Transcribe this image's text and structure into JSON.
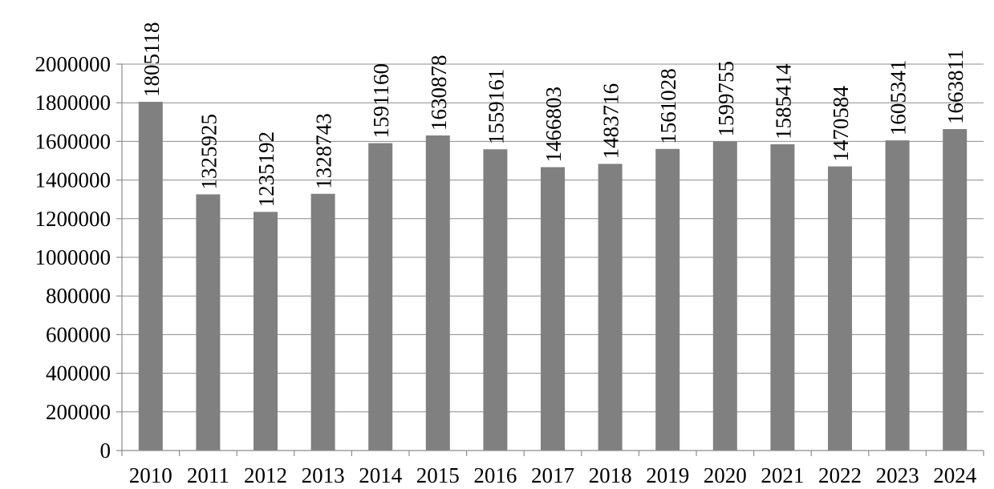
{
  "chart_data": {
    "type": "bar",
    "title": "",
    "xlabel": "",
    "ylabel": "",
    "categories": [
      "2010",
      "2011",
      "2012",
      "2013",
      "2014",
      "2015",
      "2016",
      "2017",
      "2018",
      "2019",
      "2020",
      "2021",
      "2022",
      "2023",
      "2024"
    ],
    "values": [
      1805118,
      1325925,
      1235192,
      1328743,
      1591160,
      1630878,
      1559161,
      1466803,
      1483716,
      1561028,
      1599755,
      1585414,
      1470584,
      1605341,
      1663811
    ],
    "data_labels": [
      "1805118",
      "1325925",
      "1235192",
      "1328743",
      "1591160",
      "1630878",
      "1559161",
      "1466803",
      "1483716",
      "1561028",
      "1599755",
      "1585414",
      "1470584",
      "1605341",
      "1663811"
    ],
    "ylim": [
      0,
      2000000
    ],
    "y_ticks": [
      "0",
      "200000",
      "400000",
      "600000",
      "800000",
      "1000000",
      "1200000",
      "1400000",
      "1600000",
      "1800000",
      "2000000"
    ],
    "grid": true,
    "legend": "none",
    "bar_color": "#808080"
  }
}
